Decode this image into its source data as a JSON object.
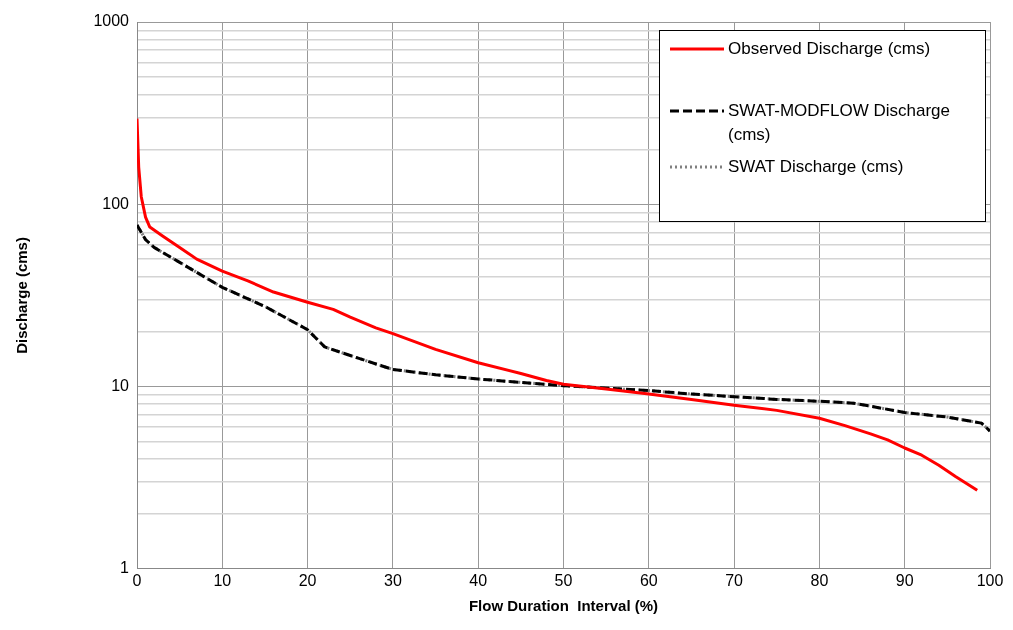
{
  "chart_data": {
    "type": "line",
    "xlabel": "Flow Duration  Interval (%)",
    "ylabel": "Discharge (cms)",
    "log": "y",
    "grid": true,
    "legend": "top right",
    "marker": "none",
    "xlim": [
      0,
      100
    ],
    "xticks": [
      0,
      10,
      20,
      30,
      40,
      50,
      60,
      70,
      80,
      90,
      100
    ],
    "ylim": [
      1,
      1000
    ],
    "yticks": [
      1,
      {
        "value": 2,
        "label": null
      },
      {
        "value": 3,
        "label": null
      },
      {
        "value": 4,
        "label": null
      },
      {
        "value": 5,
        "label": null
      },
      {
        "value": 6,
        "label": null
      },
      {
        "value": 7,
        "label": null
      },
      {
        "value": 8,
        "label": null
      },
      {
        "value": 9,
        "label": null
      },
      10,
      {
        "value": 20,
        "label": null
      },
      {
        "value": 30,
        "label": null
      },
      {
        "value": 40,
        "label": null
      },
      {
        "value": 50,
        "label": null
      },
      {
        "value": 60,
        "label": null
      },
      {
        "value": 70,
        "label": null
      },
      {
        "value": 80,
        "label": null
      },
      {
        "value": 90,
        "label": null
      },
      100,
      {
        "value": 200,
        "label": null
      },
      {
        "value": 300,
        "label": null
      },
      {
        "value": 400,
        "label": null
      },
      {
        "value": 500,
        "label": null
      },
      {
        "value": 600,
        "label": null
      },
      {
        "value": 700,
        "label": null
      },
      {
        "value": 800,
        "label": null
      },
      {
        "value": 900,
        "label": null
      },
      1000
    ],
    "series": [
      {
        "name": "Observed Discharge (cms)",
        "color": "#ff0000",
        "line_style": "solid",
        "x": [
          0,
          0.2,
          0.5,
          1,
          1.5,
          3,
          5,
          7,
          10,
          13,
          16,
          20,
          23,
          25,
          28,
          30,
          35,
          40,
          45,
          48,
          50,
          55,
          60,
          65,
          70,
          75,
          80,
          83,
          86,
          88,
          90,
          92,
          94,
          96,
          98.5
        ],
        "values": [
          295,
          160,
          110,
          85,
          75,
          67,
          58,
          50,
          43,
          38,
          33,
          29,
          26.5,
          24,
          21,
          19.5,
          16,
          13.5,
          11.8,
          10.8,
          10.3,
          9.7,
          9.1,
          8.5,
          7.9,
          7.4,
          6.7,
          6.1,
          5.5,
          5.1,
          4.6,
          4.2,
          3.7,
          3.2,
          2.7
        ]
      },
      {
        "name": "SWAT-MODFLOW Discharge (cms)",
        "color": "#000000",
        "line_style": "dashed",
        "x": [
          0,
          1,
          2,
          5,
          10,
          15,
          20,
          22,
          25,
          30,
          35,
          40,
          50,
          60,
          65,
          70,
          75,
          80,
          84,
          86,
          90,
          95,
          99,
          100
        ],
        "values": [
          77,
          64,
          58,
          48,
          35,
          27.5,
          20.5,
          16.5,
          14.8,
          12.4,
          11.6,
          11,
          10.1,
          9.5,
          9.1,
          8.8,
          8.5,
          8.3,
          8.1,
          7.8,
          7.2,
          6.8,
          6.3,
          5.7
        ]
      },
      {
        "name": "SWAT Discharge (cms)",
        "color": "#808080",
        "line_style": "dotted",
        "x": [
          0,
          1,
          2,
          5,
          10,
          15,
          20,
          22,
          25,
          30,
          35,
          40,
          50,
          60,
          65,
          70,
          75,
          80,
          84,
          86,
          90,
          95,
          99,
          100
        ],
        "values": [
          77,
          64,
          58,
          48,
          35,
          27.5,
          20.5,
          16.5,
          14.8,
          12.4,
          11.6,
          11,
          10.1,
          9.5,
          9.1,
          8.8,
          8.5,
          8.3,
          8.1,
          7.8,
          7.2,
          6.8,
          6.3,
          5.7
        ]
      }
    ]
  }
}
